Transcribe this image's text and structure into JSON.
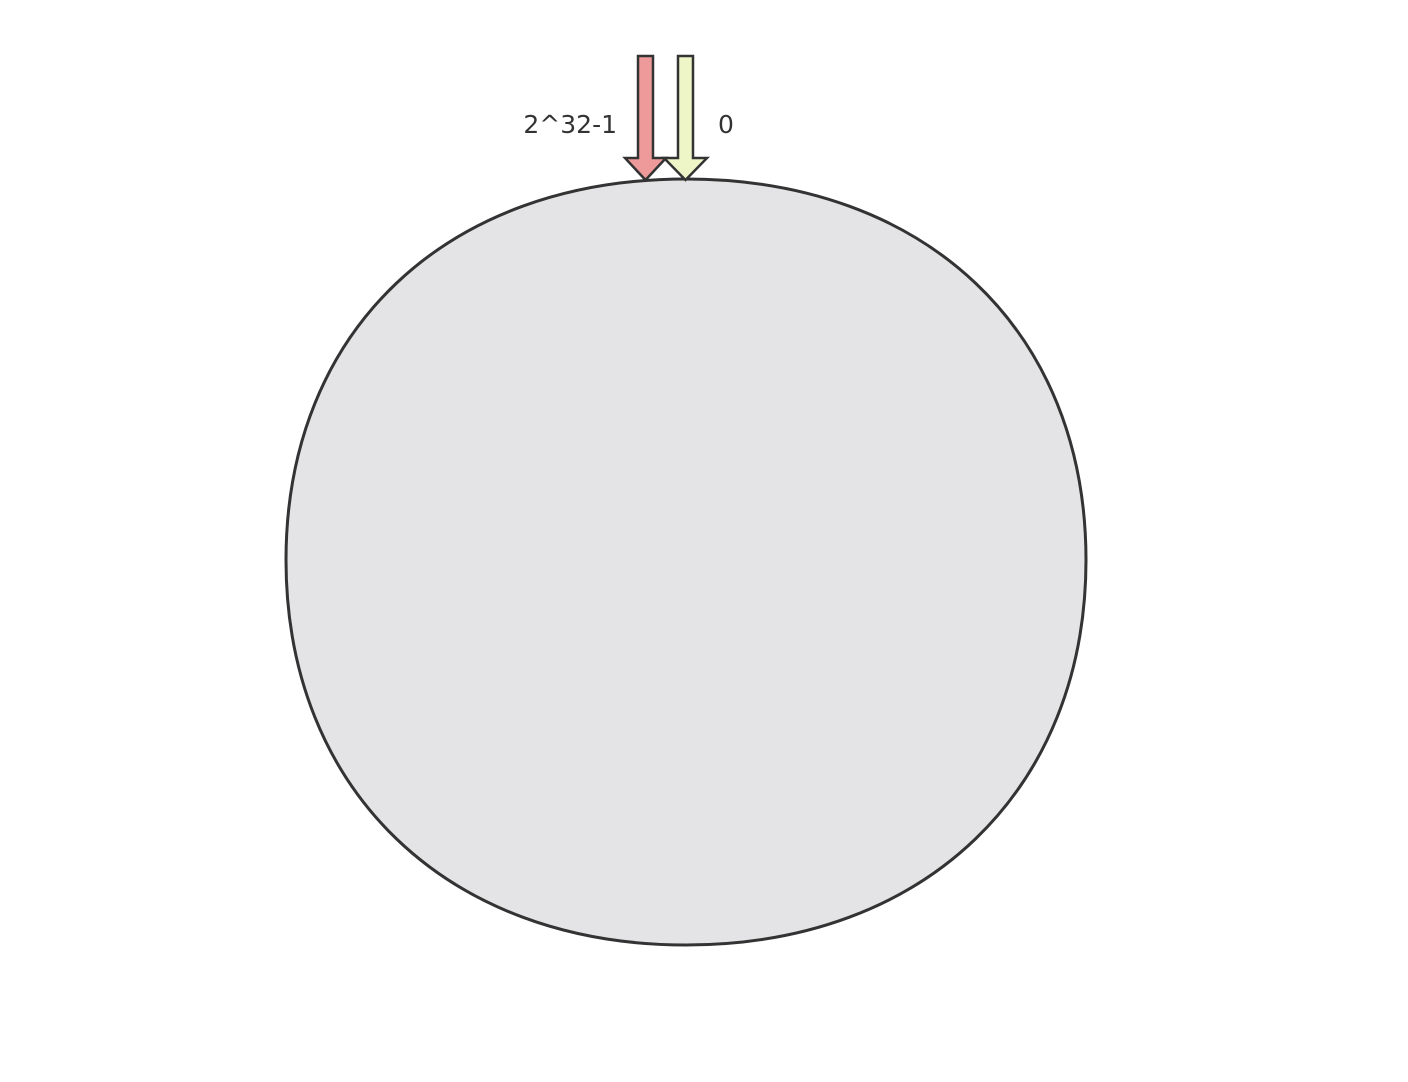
{
  "ring": {
    "fill": "#e4e4e6",
    "stroke": "#333333"
  },
  "markers": [
    {
      "label": "2^32-1",
      "color": "#ee9a9a",
      "icon": "arrow-down-icon"
    },
    {
      "label": "0",
      "color": "#eef6c8",
      "icon": "arrow-down-icon"
    }
  ]
}
